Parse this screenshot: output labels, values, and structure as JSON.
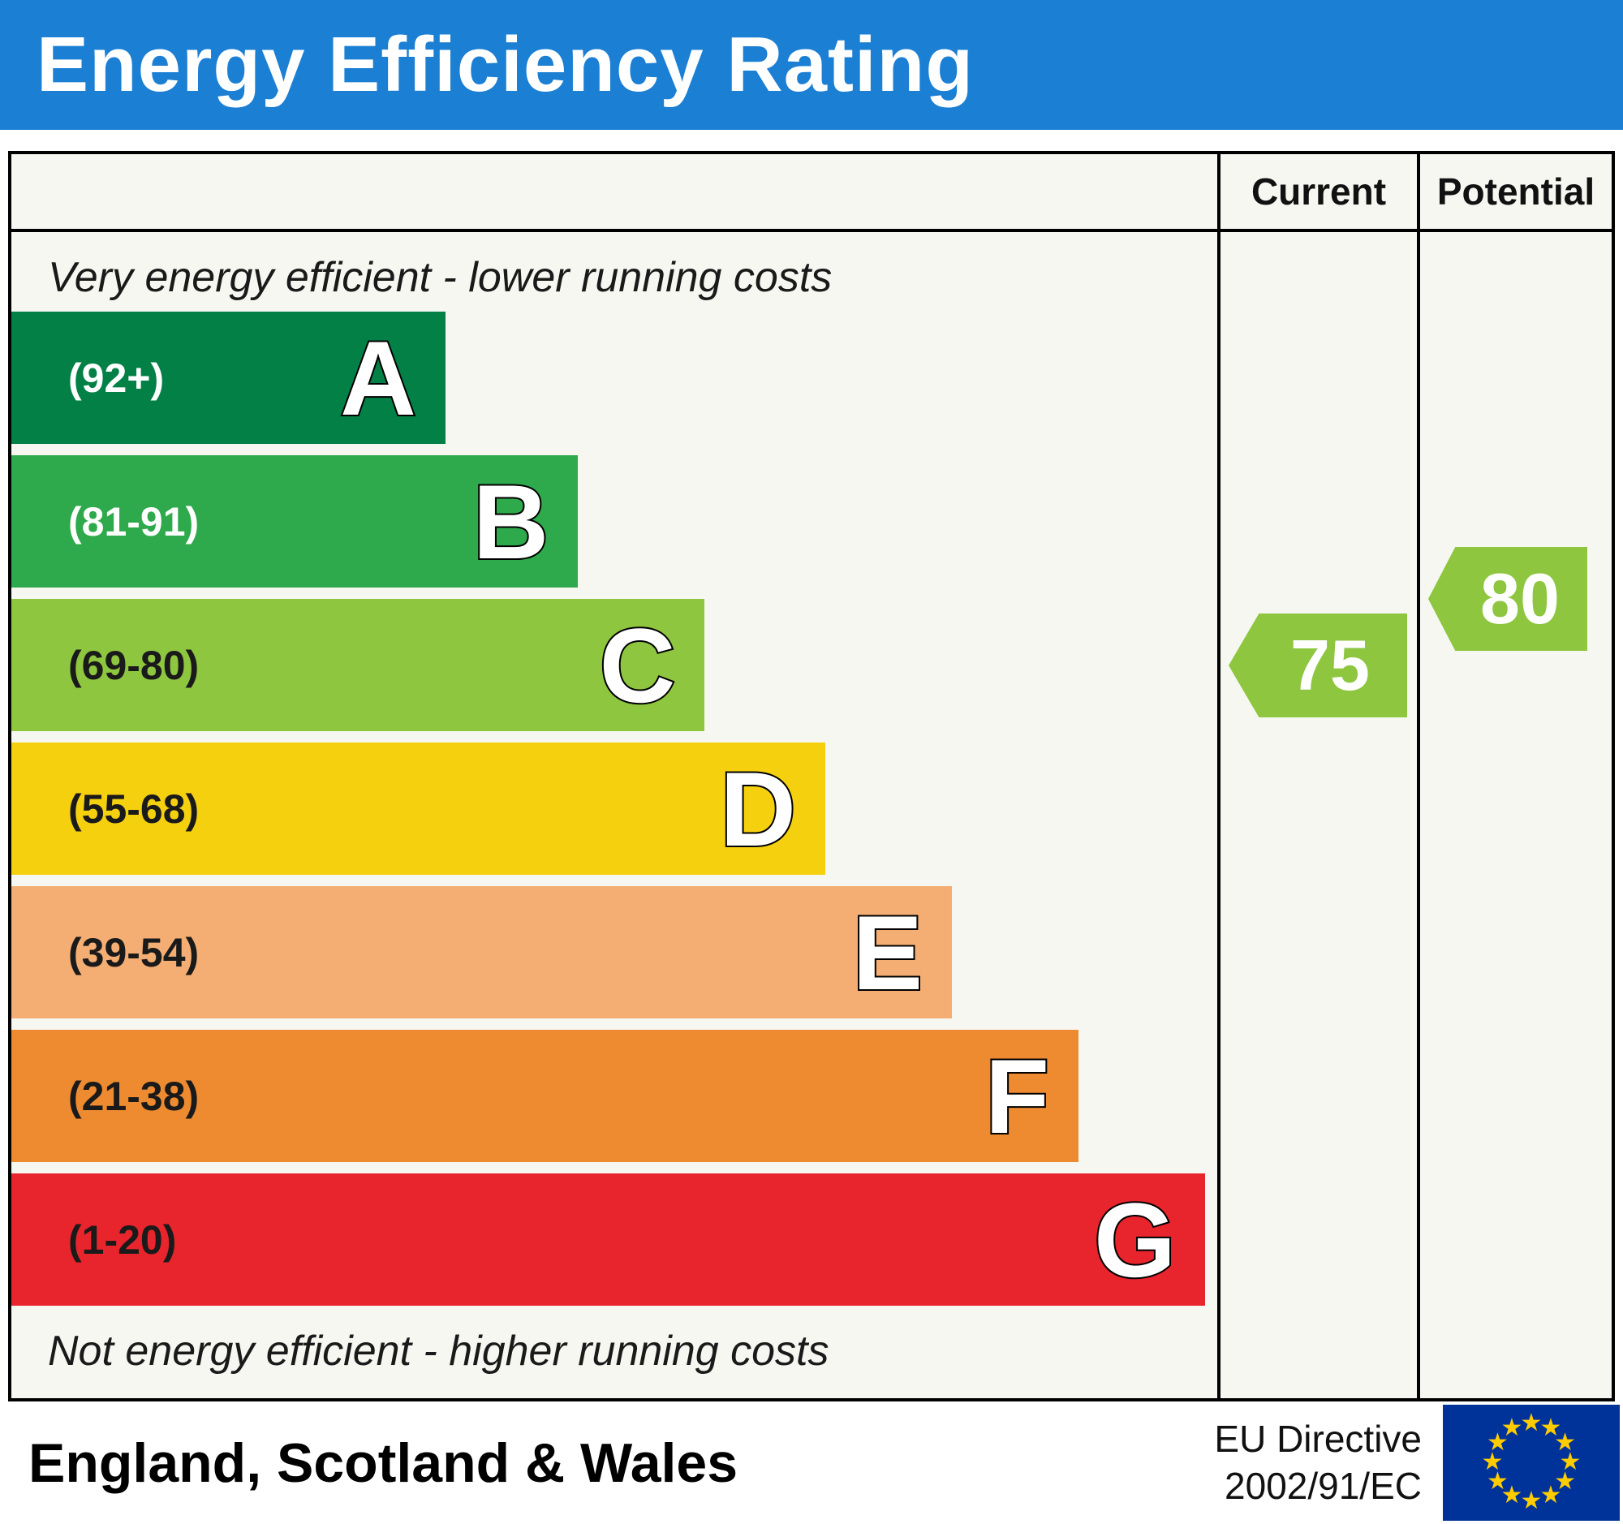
{
  "header": {
    "title": "Energy Efficiency Rating"
  },
  "columns": {
    "current": "Current",
    "potential": "Potential"
  },
  "captions": {
    "top": "Very energy efficient - lower running costs",
    "bottom": "Not energy efficient - higher running costs"
  },
  "bands": [
    {
      "letter": "A",
      "range": "(92+)",
      "color": "#028046",
      "range_color": "#ffffff",
      "width_pct": 36
    },
    {
      "letter": "B",
      "range": "(81-91)",
      "color": "#2ea94b",
      "range_color": "#ffffff",
      "width_pct": 47
    },
    {
      "letter": "C",
      "range": "(69-80)",
      "color": "#8ec63f",
      "range_color": "#1a1a1a",
      "width_pct": 57.5
    },
    {
      "letter": "D",
      "range": "(55-68)",
      "color": "#f5d00f",
      "range_color": "#1a1a1a",
      "width_pct": 67.5
    },
    {
      "letter": "E",
      "range": "(39-54)",
      "color": "#f4ae73",
      "range_color": "#1a1a1a",
      "width_pct": 78
    },
    {
      "letter": "F",
      "range": "(21-38)",
      "color": "#ee8b30",
      "range_color": "#1a1a1a",
      "width_pct": 88.5
    },
    {
      "letter": "G",
      "range": "(1-20)",
      "color": "#e8242c",
      "range_color": "#1a1a1a",
      "width_pct": 99
    }
  ],
  "ratings": {
    "current": {
      "value": "75",
      "color": "#8ec63f",
      "band": "C"
    },
    "potential": {
      "value": "80",
      "color": "#8ec63f",
      "band": "C"
    }
  },
  "footer": {
    "region": "England, Scotland & Wales",
    "directive_line1": "EU Directive",
    "directive_line2": "2002/91/EC"
  },
  "chart_data": {
    "type": "bar",
    "title": "Energy Efficiency Rating",
    "categories": [
      "A (92+)",
      "B (81-91)",
      "C (69-80)",
      "D (55-68)",
      "E (39-54)",
      "F (21-38)",
      "G (1-20)"
    ],
    "values": [
      36,
      47,
      57.5,
      67.5,
      78,
      88.5,
      99
    ],
    "value_unit": "relative bar width percent",
    "band_colors": [
      "#028046",
      "#2ea94b",
      "#8ec63f",
      "#f5d00f",
      "#f4ae73",
      "#ee8b30",
      "#e8242c"
    ],
    "annotations": {
      "current": 75,
      "potential": 80
    },
    "legend": [
      "Current",
      "Potential"
    ],
    "top_note": "Very energy efficient - lower running costs",
    "bottom_note": "Not energy efficient - higher running costs",
    "footnote": "England, Scotland & Wales - EU Directive 2002/91/EC"
  }
}
